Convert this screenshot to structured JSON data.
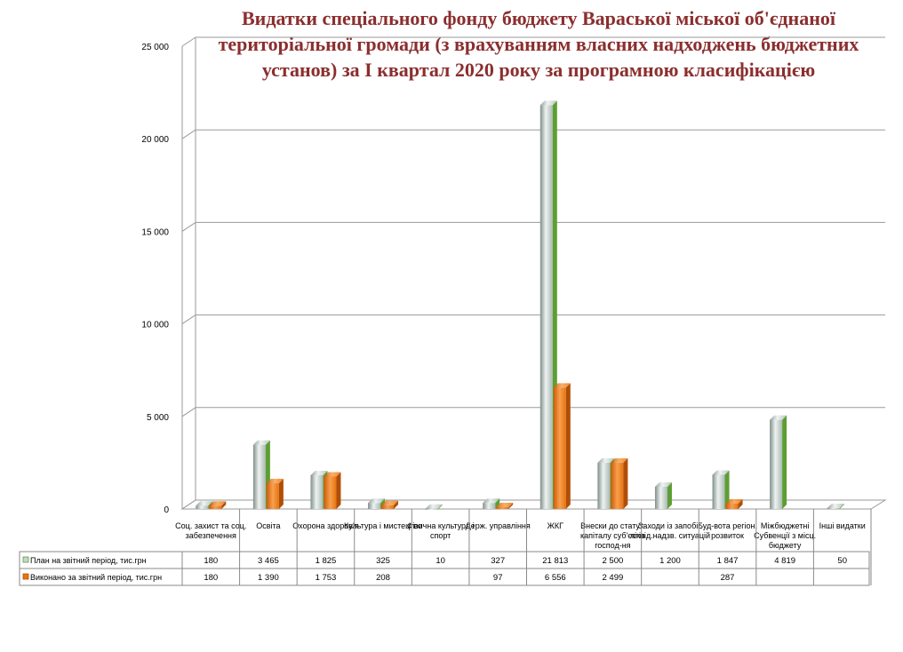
{
  "chart_data": {
    "type": "bar",
    "title": [
      "Видатки спеціального фонду бюджету Вараської міської об'єднаної",
      "територіальної громади (з врахуванням власних надходжень бюджетних",
      "установ) за І квартал 2020 року за програмною класифікацією"
    ],
    "categories": [
      [
        "Соц. захист та соц.",
        "забезпечення"
      ],
      [
        "Освіта"
      ],
      [
        "Охорона здоров'я"
      ],
      [
        "Культура і мистецтво"
      ],
      [
        "Фізична культура і",
        "спорт"
      ],
      [
        "Держ. управління"
      ],
      [
        "ЖКГ"
      ],
      [
        "Внески до статут.",
        "капіталу суб'єктів",
        "господ-ня"
      ],
      [
        "Заходи із запобіг.",
        "ліквід.надзв. ситуацій"
      ],
      [
        "Буд-вота регіон.",
        "розвиток"
      ],
      [
        "Міжбюджетні",
        "Субвенції з місц.",
        "бюджету"
      ],
      [
        "Інші видатки"
      ]
    ],
    "series": [
      {
        "name": "План на звітний період, тис.грн",
        "values": [
          180,
          3465,
          1825,
          325,
          10,
          327,
          21813,
          2500,
          1200,
          1847,
          4819,
          50
        ],
        "labels": [
          "180",
          "3 465",
          "1 825",
          "325",
          "10",
          "327",
          "21 813",
          "2 500",
          "1 200",
          "1 847",
          "4 819",
          "50"
        ],
        "color": "#a9b9b4",
        "side_color": "#5d9e33"
      },
      {
        "name": "Виконано за звітний період, тис.грн",
        "values": [
          180,
          1390,
          1753,
          208,
          null,
          97,
          6556,
          2499,
          null,
          287,
          null,
          null
        ],
        "labels": [
          "180",
          "1 390",
          "1 753",
          "208",
          "",
          "97",
          "6 556",
          "2 499",
          "",
          "287",
          "",
          ""
        ],
        "color": "#e8740e",
        "side_color": "#b04e08"
      }
    ],
    "yticks": [
      0,
      5000,
      10000,
      15000,
      20000,
      25000
    ],
    "ytick_labels": [
      "0",
      "5 000",
      "10 000",
      "15 000",
      "20 000",
      "25 000"
    ],
    "ylim": [
      0,
      25000
    ],
    "grid": true,
    "legend": "data-table-below"
  }
}
